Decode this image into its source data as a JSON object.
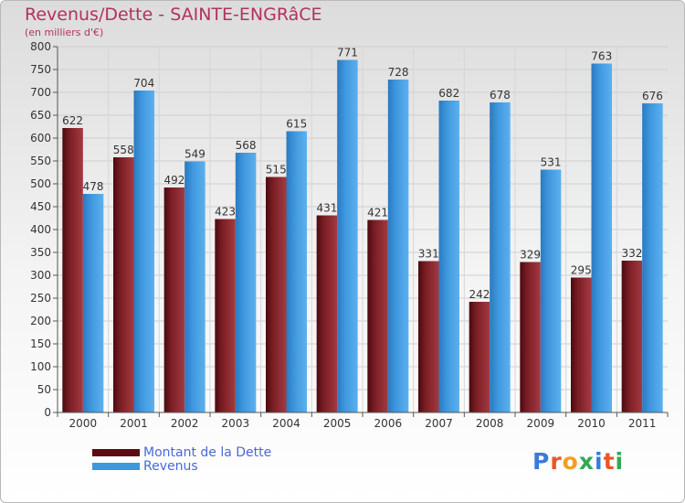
{
  "title": "Revenus/Dette - SAINTE-ENGRâCE",
  "subtitle": "(en milliers d'€)",
  "colors": {
    "debt": "#7a1e24",
    "debt_light": "#a33a42",
    "debt_dark": "#4a0a10",
    "revenue": "#3f98de",
    "revenue_light": "#5cb0ee",
    "revenue_dark": "#2a7ac0",
    "title": "#b3325a",
    "legend_text": "#4a68d8"
  },
  "legend": {
    "debt_label": "Montant de la Dette",
    "revenue_label": "Revenus"
  },
  "logo": {
    "text": "Proxiti",
    "letters": [
      {
        "ch": "P",
        "color": "#3a7ad8"
      },
      {
        "ch": "r",
        "color": "#e8562a"
      },
      {
        "ch": "o",
        "color": "#f0a020"
      },
      {
        "ch": "x",
        "color": "#34a853"
      },
      {
        "ch": "i",
        "color": "#3a7ad8"
      },
      {
        "ch": "t",
        "color": "#e8562a"
      },
      {
        "ch": "i",
        "color": "#34a853"
      }
    ]
  },
  "chart_data": {
    "type": "bar",
    "title": "Revenus/Dette - SAINTE-ENGRâCE",
    "ylabel": "(en milliers d'€)",
    "xlabel": "",
    "ylim": [
      0,
      800
    ],
    "yticks": [
      0,
      50,
      100,
      150,
      200,
      250,
      300,
      350,
      400,
      450,
      500,
      550,
      600,
      650,
      700,
      750,
      800
    ],
    "grid": true,
    "categories": [
      "2000",
      "2001",
      "2002",
      "2003",
      "2004",
      "2005",
      "2006",
      "2007",
      "2008",
      "2009",
      "2010",
      "2011"
    ],
    "series": [
      {
        "name": "Montant de la Dette",
        "values": [
          622,
          558,
          492,
          423,
          515,
          431,
          421,
          331,
          242,
          329,
          295,
          332
        ]
      },
      {
        "name": "Revenus",
        "values": [
          478,
          704,
          549,
          568,
          615,
          771,
          728,
          682,
          678,
          531,
          763,
          676
        ]
      }
    ]
  }
}
